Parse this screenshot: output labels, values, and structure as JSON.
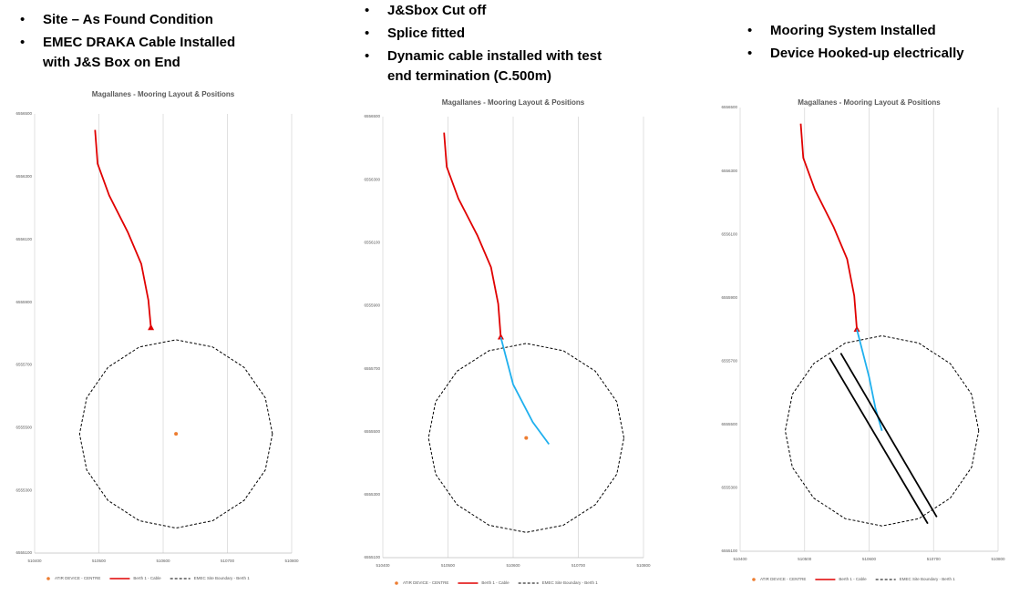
{
  "captions": [
    [
      "Site – As Found Condition",
      "EMEC DRAKA Cable Installed with J&S Box on End"
    ],
    [
      "J&Sbox Cut off",
      "Splice fitted",
      "Dynamic cable installed with test end termination (C.500m)"
    ],
    [
      "Mooring System Installed",
      "Device Hooked-up electrically"
    ]
  ],
  "chart_data": [
    {
      "type": "scatter",
      "title": "Magallanes - Mooring Layout & Positions",
      "xlim": [
        510400,
        510800
      ],
      "ylim": [
        6555100,
        6556500
      ],
      "xticks": [
        510400,
        510500,
        510600,
        510700,
        510800
      ],
      "yticks": [
        6555100,
        6555300,
        6555500,
        6555700,
        6555900,
        6556100,
        6556300,
        6556500
      ],
      "grid": "x",
      "series": [
        {
          "name": "ATIR DEVICE - CENTRE",
          "color": "#ed7d31",
          "mode": "marker",
          "x": [
            510620
          ],
          "y": [
            6555480
          ]
        },
        {
          "name": "Berth 1 - Cable",
          "color": "#e00000",
          "mode": "line",
          "end_marker": "triangle",
          "x": [
            510494,
            510498,
            510516,
            510545,
            510566,
            510577,
            510581
          ],
          "y": [
            6556449,
            6556341,
            6556240,
            6556123,
            6556022,
            6555906,
            6555818
          ]
        },
        {
          "name": "EMEC Site Boundary - Berth 1",
          "color": "#000000",
          "mode": "dashed",
          "x": [
            510770,
            510759,
            510726,
            510677,
            510620,
            510563,
            510514,
            510481,
            510470,
            510481,
            510514,
            510563,
            510620,
            510677,
            510726,
            510759,
            510770
          ],
          "y": [
            6555480,
            6555595,
            6555692,
            6555757,
            6555780,
            6555757,
            6555692,
            6555595,
            6555480,
            6555365,
            6555268,
            6555203,
            6555180,
            6555203,
            6555268,
            6555365,
            6555480
          ]
        }
      ]
    },
    {
      "type": "scatter",
      "title": "Magallanes - Mooring Layout & Positions",
      "xlim": [
        510400,
        510800
      ],
      "ylim": [
        6555100,
        6556500
      ],
      "xticks": [
        510400,
        510500,
        510600,
        510700,
        510800
      ],
      "yticks": [
        6555100,
        6555300,
        6555500,
        6555700,
        6555900,
        6556100,
        6556300,
        6556500
      ],
      "grid": "x",
      "series": [
        {
          "name": "ATIR DEVICE - CENTRE",
          "color": "#ed7d31",
          "mode": "marker",
          "x": [
            510620
          ],
          "y": [
            6555480
          ]
        },
        {
          "name": "Berth 1 - Cable",
          "color": "#e00000",
          "mode": "line",
          "end_marker": "triangle",
          "x": [
            510494,
            510498,
            510516,
            510545,
            510566,
            510577,
            510581
          ],
          "y": [
            6556449,
            6556341,
            6556240,
            6556123,
            6556022,
            6555906,
            6555800
          ]
        },
        {
          "name": "EMEC Site Boundary - Berth 1",
          "color": "#000000",
          "mode": "dashed",
          "x": [
            510770,
            510759,
            510726,
            510677,
            510620,
            510563,
            510514,
            510481,
            510470,
            510481,
            510514,
            510563,
            510620,
            510677,
            510726,
            510759,
            510770
          ],
          "y": [
            6555480,
            6555595,
            6555692,
            6555757,
            6555780,
            6555757,
            6555692,
            6555595,
            6555480,
            6555365,
            6555268,
            6555203,
            6555180,
            6555203,
            6555268,
            6555365,
            6555480
          ]
        },
        {
          "color": "#1fb0ee",
          "mode": "line",
          "x": [
            510581,
            510600,
            510630,
            510655
          ],
          "y": [
            6555800,
            6555650,
            6555530,
            6555460
          ]
        }
      ]
    },
    {
      "type": "scatter",
      "title": "Magallanes - Mooring Layout & Positions",
      "xlim": [
        510400,
        510800
      ],
      "ylim": [
        6555100,
        6556500
      ],
      "xticks": [
        510400,
        510500,
        510600,
        510700,
        510800
      ],
      "yticks": [
        6555100,
        6555300,
        6555500,
        6555700,
        6555900,
        6556100,
        6556300,
        6556500
      ],
      "grid": "x",
      "series": [
        {
          "name": "ATIR DEVICE - CENTRE",
          "color": "#ed7d31",
          "mode": "marker",
          "x": [],
          "y": []
        },
        {
          "name": "Berth 1 - Cable",
          "color": "#e00000",
          "mode": "line",
          "end_marker": "triangle",
          "x": [
            510494,
            510498,
            510516,
            510545,
            510566,
            510577,
            510581
          ],
          "y": [
            6556449,
            6556341,
            6556240,
            6556123,
            6556022,
            6555906,
            6555800
          ]
        },
        {
          "name": "EMEC Site Boundary - Berth 1",
          "color": "#000000",
          "mode": "dashed",
          "x": [
            510770,
            510759,
            510726,
            510677,
            510620,
            510563,
            510514,
            510481,
            510470,
            510481,
            510514,
            510563,
            510620,
            510677,
            510726,
            510759,
            510770
          ],
          "y": [
            6555480,
            6555595,
            6555692,
            6555757,
            6555780,
            6555757,
            6555692,
            6555595,
            6555480,
            6555365,
            6555268,
            6555203,
            6555180,
            6555203,
            6555268,
            6555365,
            6555480
          ]
        },
        {
          "color": "#1fb0ee",
          "mode": "line",
          "x": [
            510581,
            510600,
            510610,
            510620
          ],
          "y": [
            6555800,
            6555650,
            6555550,
            6555480
          ]
        },
        {
          "color": "#000000",
          "mode": "line",
          "x": [
            510539,
            510691
          ],
          "y": [
            6555710,
            6555187
          ]
        },
        {
          "color": "#000000",
          "mode": "line",
          "x": [
            510556,
            510705
          ],
          "y": [
            6555725,
            6555208
          ]
        }
      ]
    }
  ]
}
